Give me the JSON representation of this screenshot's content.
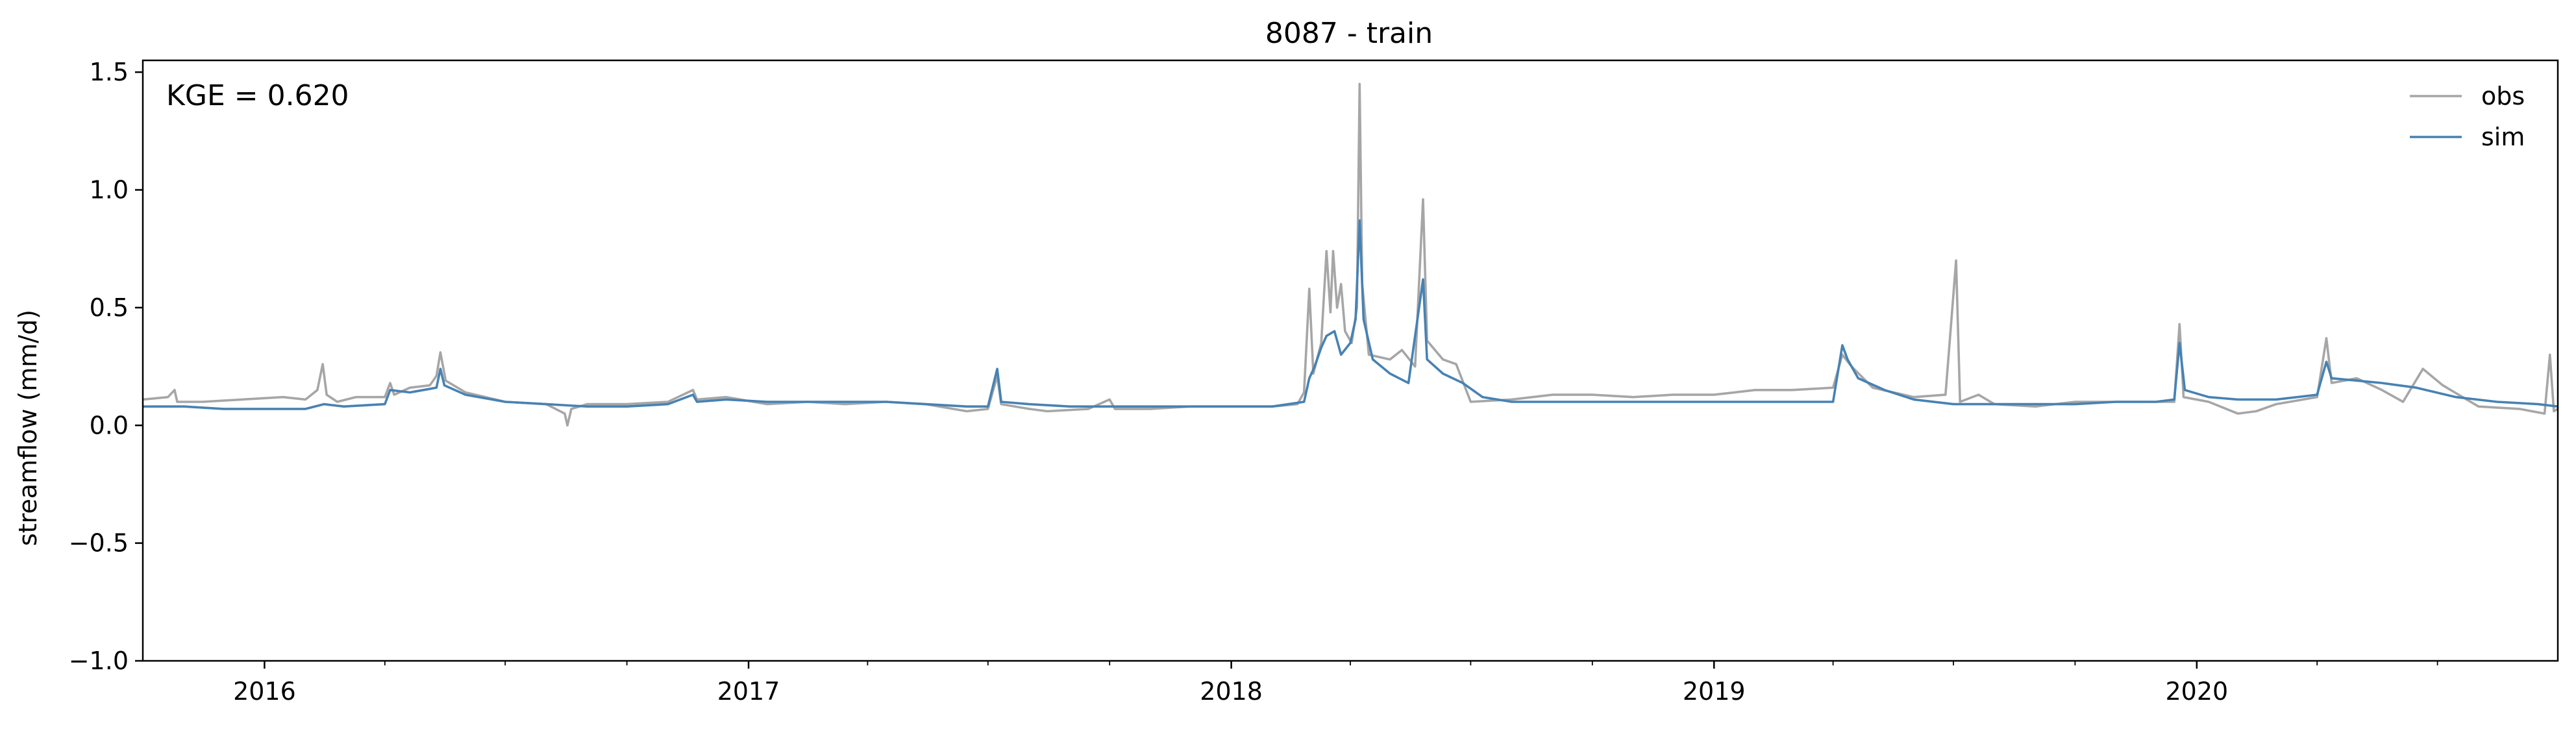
{
  "chart_data": {
    "type": "line",
    "title": "8087 - train",
    "xlabel": "",
    "ylabel": "streamflow (mm/d)",
    "annotation": "KGE = 0.620",
    "xlim": [
      "2015-10-01",
      "2020-09-30"
    ],
    "ylim": [
      -1.0,
      1.55
    ],
    "yticks": [
      -1.0,
      -0.5,
      0.0,
      0.5,
      1.0,
      1.5
    ],
    "ytick_labels": [
      "−1.0",
      "−0.5",
      "0.0",
      "0.5",
      "1.0",
      "1.5"
    ],
    "xticks": [
      "2016-01-01",
      "2017-01-01",
      "2018-01-01",
      "2019-01-01",
      "2020-01-01"
    ],
    "xtick_labels": [
      "2016",
      "2017",
      "2018",
      "2019",
      "2020"
    ],
    "grid": false,
    "legend_position": "top-right",
    "series": [
      {
        "name": "obs",
        "color": "#a6a6a6",
        "points": [
          [
            "2015-10-01",
            0.11
          ],
          [
            "2015-10-20",
            0.12
          ],
          [
            "2015-10-25",
            0.15
          ],
          [
            "2015-10-27",
            0.1
          ],
          [
            "2015-11-15",
            0.1
          ],
          [
            "2015-12-15",
            0.11
          ],
          [
            "2016-01-15",
            0.12
          ],
          [
            "2016-02-01",
            0.11
          ],
          [
            "2016-02-10",
            0.15
          ],
          [
            "2016-02-14",
            0.26
          ],
          [
            "2016-02-17",
            0.13
          ],
          [
            "2016-02-25",
            0.1
          ],
          [
            "2016-03-10",
            0.12
          ],
          [
            "2016-04-01",
            0.12
          ],
          [
            "2016-04-05",
            0.18
          ],
          [
            "2016-04-08",
            0.13
          ],
          [
            "2016-04-20",
            0.16
          ],
          [
            "2016-05-05",
            0.17
          ],
          [
            "2016-05-10",
            0.21
          ],
          [
            "2016-05-13",
            0.31
          ],
          [
            "2016-05-17",
            0.19
          ],
          [
            "2016-06-01",
            0.14
          ],
          [
            "2016-07-01",
            0.1
          ],
          [
            "2016-08-01",
            0.09
          ],
          [
            "2016-08-15",
            0.05
          ],
          [
            "2016-08-17",
            0.0
          ],
          [
            "2016-08-20",
            0.07
          ],
          [
            "2016-09-01",
            0.09
          ],
          [
            "2016-10-01",
            0.09
          ],
          [
            "2016-11-01",
            0.1
          ],
          [
            "2016-11-20",
            0.15
          ],
          [
            "2016-11-23",
            0.11
          ],
          [
            "2016-12-15",
            0.12
          ],
          [
            "2017-01-15",
            0.09
          ],
          [
            "2017-02-15",
            0.1
          ],
          [
            "2017-03-15",
            0.09
          ],
          [
            "2017-04-15",
            0.1
          ],
          [
            "2017-05-15",
            0.09
          ],
          [
            "2017-06-15",
            0.06
          ],
          [
            "2017-07-01",
            0.07
          ],
          [
            "2017-07-08",
            0.21
          ],
          [
            "2017-07-11",
            0.09
          ],
          [
            "2017-08-01",
            0.07
          ],
          [
            "2017-08-15",
            0.06
          ],
          [
            "2017-09-15",
            0.07
          ],
          [
            "2017-10-01",
            0.11
          ],
          [
            "2017-10-05",
            0.07
          ],
          [
            "2017-11-01",
            0.07
          ],
          [
            "2017-12-01",
            0.08
          ],
          [
            "2018-01-01",
            0.08
          ],
          [
            "2018-02-01",
            0.08
          ],
          [
            "2018-02-20",
            0.09
          ],
          [
            "2018-02-25",
            0.14
          ],
          [
            "2018-03-01",
            0.58
          ],
          [
            "2018-03-04",
            0.22
          ],
          [
            "2018-03-10",
            0.35
          ],
          [
            "2018-03-14",
            0.74
          ],
          [
            "2018-03-17",
            0.48
          ],
          [
            "2018-03-19",
            0.74
          ],
          [
            "2018-03-22",
            0.5
          ],
          [
            "2018-03-25",
            0.6
          ],
          [
            "2018-03-28",
            0.4
          ],
          [
            "2018-04-02",
            0.35
          ],
          [
            "2018-04-06",
            0.5
          ],
          [
            "2018-04-08",
            1.45
          ],
          [
            "2018-04-10",
            0.6
          ],
          [
            "2018-04-15",
            0.3
          ],
          [
            "2018-05-01",
            0.28
          ],
          [
            "2018-05-10",
            0.32
          ],
          [
            "2018-05-20",
            0.25
          ],
          [
            "2018-05-26",
            0.96
          ],
          [
            "2018-05-29",
            0.36
          ],
          [
            "2018-06-10",
            0.28
          ],
          [
            "2018-06-20",
            0.26
          ],
          [
            "2018-07-01",
            0.1
          ],
          [
            "2018-08-01",
            0.11
          ],
          [
            "2018-09-01",
            0.13
          ],
          [
            "2018-10-01",
            0.13
          ],
          [
            "2018-11-01",
            0.12
          ],
          [
            "2018-12-01",
            0.13
          ],
          [
            "2019-01-01",
            0.13
          ],
          [
            "2019-02-01",
            0.15
          ],
          [
            "2019-03-01",
            0.15
          ],
          [
            "2019-04-01",
            0.16
          ],
          [
            "2019-04-08",
            0.3
          ],
          [
            "2019-04-15",
            0.25
          ],
          [
            "2019-05-01",
            0.16
          ],
          [
            "2019-06-01",
            0.12
          ],
          [
            "2019-06-25",
            0.13
          ],
          [
            "2019-07-03",
            0.7
          ],
          [
            "2019-07-06",
            0.1
          ],
          [
            "2019-07-20",
            0.13
          ],
          [
            "2019-08-01",
            0.09
          ],
          [
            "2019-09-01",
            0.08
          ],
          [
            "2019-10-01",
            0.1
          ],
          [
            "2019-11-01",
            0.1
          ],
          [
            "2019-12-01",
            0.1
          ],
          [
            "2019-12-15",
            0.1
          ],
          [
            "2019-12-19",
            0.43
          ],
          [
            "2019-12-22",
            0.12
          ],
          [
            "2020-01-10",
            0.1
          ],
          [
            "2020-02-01",
            0.05
          ],
          [
            "2020-02-15",
            0.06
          ],
          [
            "2020-03-01",
            0.09
          ],
          [
            "2020-04-01",
            0.12
          ],
          [
            "2020-04-08",
            0.37
          ],
          [
            "2020-04-12",
            0.18
          ],
          [
            "2020-05-01",
            0.2
          ],
          [
            "2020-05-20",
            0.15
          ],
          [
            "2020-06-05",
            0.1
          ],
          [
            "2020-06-20",
            0.24
          ],
          [
            "2020-07-05",
            0.17
          ],
          [
            "2020-08-01",
            0.08
          ],
          [
            "2020-09-01",
            0.07
          ],
          [
            "2020-09-20",
            0.05
          ],
          [
            "2020-09-24",
            0.3
          ],
          [
            "2020-09-27",
            0.06
          ],
          [
            "2020-09-30",
            0.07
          ]
        ]
      },
      {
        "name": "sim",
        "color": "#4682b4",
        "points": [
          [
            "2015-10-01",
            0.08
          ],
          [
            "2015-11-01",
            0.08
          ],
          [
            "2015-12-01",
            0.07
          ],
          [
            "2016-01-01",
            0.07
          ],
          [
            "2016-02-01",
            0.07
          ],
          [
            "2016-02-15",
            0.09
          ],
          [
            "2016-03-01",
            0.08
          ],
          [
            "2016-04-01",
            0.09
          ],
          [
            "2016-04-05",
            0.15
          ],
          [
            "2016-04-20",
            0.14
          ],
          [
            "2016-05-10",
            0.16
          ],
          [
            "2016-05-13",
            0.24
          ],
          [
            "2016-05-16",
            0.17
          ],
          [
            "2016-06-01",
            0.13
          ],
          [
            "2016-07-01",
            0.1
          ],
          [
            "2016-08-01",
            0.09
          ],
          [
            "2016-09-01",
            0.08
          ],
          [
            "2016-10-01",
            0.08
          ],
          [
            "2016-11-01",
            0.09
          ],
          [
            "2016-11-20",
            0.13
          ],
          [
            "2016-11-23",
            0.1
          ],
          [
            "2016-12-15",
            0.11
          ],
          [
            "2017-01-15",
            0.1
          ],
          [
            "2017-02-15",
            0.1
          ],
          [
            "2017-03-15",
            0.1
          ],
          [
            "2017-04-15",
            0.1
          ],
          [
            "2017-05-15",
            0.09
          ],
          [
            "2017-06-15",
            0.08
          ],
          [
            "2017-07-01",
            0.08
          ],
          [
            "2017-07-08",
            0.24
          ],
          [
            "2017-07-11",
            0.1
          ],
          [
            "2017-08-01",
            0.09
          ],
          [
            "2017-09-01",
            0.08
          ],
          [
            "2017-10-01",
            0.08
          ],
          [
            "2017-11-01",
            0.08
          ],
          [
            "2017-12-01",
            0.08
          ],
          [
            "2018-01-01",
            0.08
          ],
          [
            "2018-02-01",
            0.08
          ],
          [
            "2018-02-25",
            0.1
          ],
          [
            "2018-03-01",
            0.2
          ],
          [
            "2018-03-05",
            0.25
          ],
          [
            "2018-03-10",
            0.33
          ],
          [
            "2018-03-14",
            0.38
          ],
          [
            "2018-03-20",
            0.4
          ],
          [
            "2018-03-25",
            0.3
          ],
          [
            "2018-04-01",
            0.35
          ],
          [
            "2018-04-05",
            0.45
          ],
          [
            "2018-04-08",
            0.87
          ],
          [
            "2018-04-11",
            0.45
          ],
          [
            "2018-04-18",
            0.28
          ],
          [
            "2018-05-01",
            0.22
          ],
          [
            "2018-05-15",
            0.18
          ],
          [
            "2018-05-26",
            0.62
          ],
          [
            "2018-05-29",
            0.28
          ],
          [
            "2018-06-10",
            0.22
          ],
          [
            "2018-06-25",
            0.18
          ],
          [
            "2018-07-10",
            0.12
          ],
          [
            "2018-08-01",
            0.1
          ],
          [
            "2018-09-01",
            0.1
          ],
          [
            "2018-10-01",
            0.1
          ],
          [
            "2018-11-01",
            0.1
          ],
          [
            "2018-12-01",
            0.1
          ],
          [
            "2019-01-01",
            0.1
          ],
          [
            "2019-02-01",
            0.1
          ],
          [
            "2019-03-01",
            0.1
          ],
          [
            "2019-04-01",
            0.1
          ],
          [
            "2019-04-08",
            0.34
          ],
          [
            "2019-04-12",
            0.28
          ],
          [
            "2019-04-20",
            0.2
          ],
          [
            "2019-05-10",
            0.15
          ],
          [
            "2019-06-01",
            0.11
          ],
          [
            "2019-07-01",
            0.09
          ],
          [
            "2019-08-01",
            0.09
          ],
          [
            "2019-09-01",
            0.09
          ],
          [
            "2019-10-01",
            0.09
          ],
          [
            "2019-11-01",
            0.1
          ],
          [
            "2019-12-01",
            0.1
          ],
          [
            "2019-12-15",
            0.11
          ],
          [
            "2019-12-19",
            0.35
          ],
          [
            "2019-12-23",
            0.15
          ],
          [
            "2020-01-10",
            0.12
          ],
          [
            "2020-02-01",
            0.11
          ],
          [
            "2020-03-01",
            0.11
          ],
          [
            "2020-04-01",
            0.13
          ],
          [
            "2020-04-08",
            0.27
          ],
          [
            "2020-04-12",
            0.2
          ],
          [
            "2020-05-01",
            0.19
          ],
          [
            "2020-05-20",
            0.18
          ],
          [
            "2020-06-15",
            0.16
          ],
          [
            "2020-07-15",
            0.12
          ],
          [
            "2020-08-15",
            0.1
          ],
          [
            "2020-09-15",
            0.09
          ],
          [
            "2020-09-30",
            0.08
          ]
        ]
      }
    ]
  }
}
